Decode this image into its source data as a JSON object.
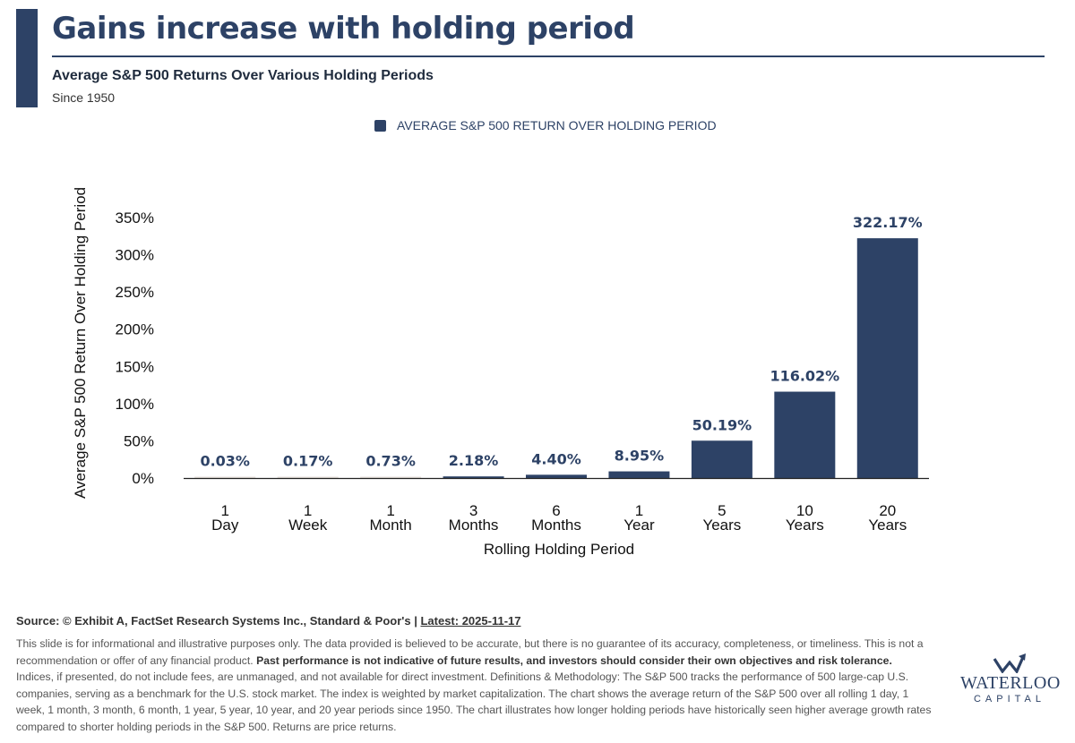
{
  "header": {
    "title": "Gains increase with holding period",
    "subtitle": "Average S&P 500 Returns Over Various Holding Periods",
    "since": "Since 1950"
  },
  "legend": {
    "label": "AVERAGE S&P 500 RETURN OVER HOLDING PERIOD",
    "color": "#2d4266"
  },
  "chart_data": {
    "type": "bar",
    "categories": [
      "1 Day",
      "1 Week",
      "1 Month",
      "3 Months",
      "6 Months",
      "1 Year",
      "5 Years",
      "10 Years",
      "20 Years"
    ],
    "category_lines": [
      [
        "1",
        "Day"
      ],
      [
        "1",
        "Week"
      ],
      [
        "1",
        "Month"
      ],
      [
        "3",
        "Months"
      ],
      [
        "6",
        "Months"
      ],
      [
        "1",
        "Year"
      ],
      [
        "5",
        "Years"
      ],
      [
        "10",
        "Years"
      ],
      [
        "20",
        "Years"
      ]
    ],
    "series": [
      {
        "name": "AVERAGE S&P 500 RETURN OVER HOLDING PERIOD",
        "values": [
          0.03,
          0.17,
          0.73,
          2.18,
          4.4,
          8.95,
          50.19,
          116.02,
          322.17
        ],
        "labels": [
          "0.03%",
          "0.17%",
          "0.73%",
          "2.18%",
          "4.40%",
          "8.95%",
          "50.19%",
          "116.02%",
          "322.17%"
        ]
      }
    ],
    "xlabel": "Rolling Holding Period",
    "ylabel": "Average S&P 500 Return Over Holding Period",
    "ylim": [
      0,
      350
    ],
    "yticks": [
      0,
      50,
      100,
      150,
      200,
      250,
      300,
      350
    ],
    "ytick_labels": [
      "0%",
      "50%",
      "100%",
      "150%",
      "200%",
      "250%",
      "300%",
      "350%"
    ],
    "grid": false,
    "legend_position": "top-center",
    "bar_color": "#2d4266",
    "small_bar_color": "#e8e2dc"
  },
  "footer": {
    "source_prefix": "Source: © Exhibit A, FactSet Research Systems Inc., Standard & Poor's | ",
    "source_latest": "Latest: 2025-11-17",
    "disclaimer_part1": "This slide is for informational and illustrative purposes only. The data provided is believed to be accurate, but there is no guarantee of its accuracy, completeness, or timeliness. This is not a recommendation or offer of any financial product. ",
    "disclaimer_bold": "Past performance is not indicative of future results, and investors should consider their own objectives and risk tolerance.",
    "disclaimer_part2": " Indices, if presented, do not include fees, are unmanaged, and not available for direct investment. Definitions & Methodology: The S&P 500 tracks the performance of 500 large-cap U.S. companies, serving as a benchmark for the U.S. stock market. The index is weighted by market capitalization. The chart shows the average return of the S&P 500 over all rolling 1 day, 1 week, 1 month, 3 month, 6 month, 1 year, 5 year, 10 year, and 20 year periods since 1950. The chart illustrates how longer holding periods have historically seen higher average growth rates compared to shorter holding periods in the S&P 500. Returns are price returns."
  },
  "logo": {
    "name": "WATERLOO",
    "sub": "CAPITAL",
    "icon": "w-arrow-icon"
  }
}
